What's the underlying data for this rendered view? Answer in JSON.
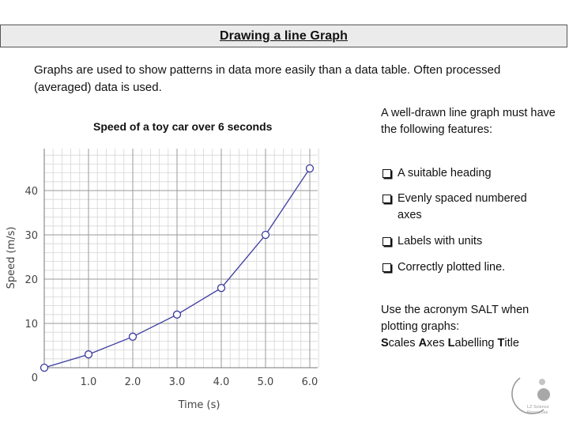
{
  "header": {
    "title": "Drawing a line Graph"
  },
  "intro": {
    "text": "Graphs are used to show patterns in data more easily than a data table. Often processed (averaged) data is used."
  },
  "chart_data": {
    "type": "line",
    "title": "Speed of a toy car over 6 seconds",
    "xlabel": "Time (s)",
    "ylabel": "Speed (m/s)",
    "xlim": [
      0,
      6.3
    ],
    "ylim": [
      0,
      48
    ],
    "x_ticks": [
      1.0,
      2.0,
      3.0,
      4.0,
      5.0,
      6.0
    ],
    "x_tick_labels": [
      "1.0",
      "2.0",
      "3.0",
      "4.0",
      "5.0",
      "6.0"
    ],
    "y_ticks": [
      0,
      10,
      20,
      30,
      40
    ],
    "y_tick_labels": [
      "0",
      "10",
      "20",
      "30",
      "40"
    ],
    "grid": true,
    "series": [
      {
        "x": [
          0,
          1,
          2,
          3,
          4,
          5,
          6
        ],
        "y": [
          0,
          3,
          7,
          12,
          18,
          30,
          45
        ]
      }
    ],
    "colors": {
      "line": "#3a3aa0",
      "marker_fill": "#ffffff",
      "grid_major": "#9a9a9a",
      "grid_minor": "#d6d6d6"
    }
  },
  "sidebar": {
    "intro": "A well-drawn line graph must have the following features:",
    "features": [
      "A suitable heading",
      "Evenly spaced numbered axes",
      "Labels with units",
      "Correctly plotted line."
    ],
    "acronym_line1": "Use the acronym SALT when plotting graphs:",
    "salt": [
      {
        "initial": "S",
        "rest": "cales"
      },
      {
        "initial": "A",
        "rest": "xes"
      },
      {
        "initial": "L",
        "rest": "abelling"
      },
      {
        "initial": "T",
        "rest": "itle"
      }
    ]
  },
  "logo": {
    "line1": "LZ Science",
    "line2": "Resources"
  }
}
